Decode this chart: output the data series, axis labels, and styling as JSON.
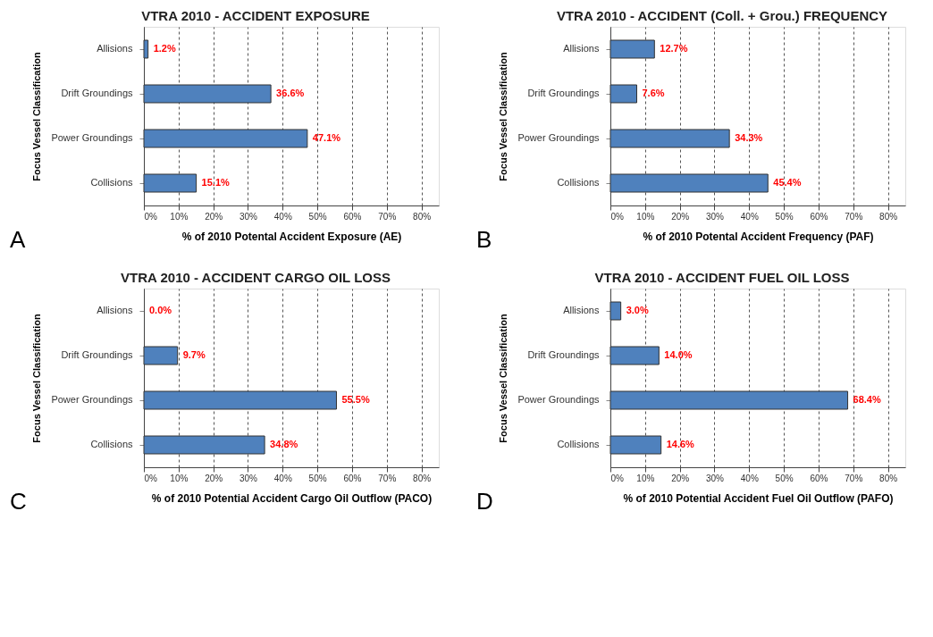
{
  "chart_data": [
    {
      "type": "bar",
      "orientation": "horizontal",
      "title": "VTRA 2010 - ACCIDENT EXPOSURE",
      "xlabel": "% of 2010 Potental Accident Exposure (AE)",
      "ylabel": "Focus Vessel Classification",
      "categories": [
        "Allisions",
        "Drift Groundings",
        "Power Groundings",
        "Collisions"
      ],
      "series": [
        {
          "color": "#4f81bd",
          "values": [
            1.2,
            36.6,
            47.1,
            15.1
          ],
          "value_labels": [
            "1.2%",
            "36.6%",
            "47.1%",
            "15.1%"
          ]
        }
      ],
      "xlim": [
        0,
        85
      ],
      "xticks": [
        {
          "value": 0,
          "label": "0%"
        },
        {
          "value": 10,
          "label": "10%"
        },
        {
          "value": 20,
          "label": "20%"
        },
        {
          "value": 30,
          "label": "30%"
        },
        {
          "value": 40,
          "label": "40%"
        },
        {
          "value": 50,
          "label": "50%"
        },
        {
          "value": 60,
          "label": "60%"
        },
        {
          "value": 70,
          "label": "70%"
        },
        {
          "value": 80,
          "label": "80%"
        }
      ],
      "grid": "x",
      "annotations": [
        "A"
      ]
    },
    {
      "type": "bar",
      "orientation": "horizontal",
      "title": "VTRA 2010 - ACCIDENT (Coll. + Grou.) FREQUENCY",
      "xlabel": "% of 2010 Potental Accident Frequency (PAF)",
      "ylabel": "Focus Vessel Classification",
      "categories": [
        "Allisions",
        "Drift Groundings",
        "Power Groundings",
        "Collisions"
      ],
      "series": [
        {
          "color": "#4f81bd",
          "values": [
            12.7,
            7.6,
            34.3,
            45.4
          ],
          "value_labels": [
            "12.7%",
            "7.6%",
            "34.3%",
            "45.4%"
          ]
        }
      ],
      "xlim": [
        0,
        85
      ],
      "xticks": [
        {
          "value": 0,
          "label": "0%"
        },
        {
          "value": 10,
          "label": "10%"
        },
        {
          "value": 20,
          "label": "20%"
        },
        {
          "value": 30,
          "label": "30%"
        },
        {
          "value": 40,
          "label": "40%"
        },
        {
          "value": 50,
          "label": "50%"
        },
        {
          "value": 60,
          "label": "60%"
        },
        {
          "value": 70,
          "label": "70%"
        },
        {
          "value": 80,
          "label": "80%"
        }
      ],
      "grid": "x",
      "annotations": [
        "B"
      ]
    },
    {
      "type": "bar",
      "orientation": "horizontal",
      "title": "VTRA 2010 - ACCIDENT CARGO OIL LOSS",
      "xlabel": "% of 2010 Potential Accident Cargo Oil Outflow (PACO)",
      "ylabel": "Focus Vessel Classification",
      "categories": [
        "Allisions",
        "Drift Groundings",
        "Power Groundings",
        "Collisions"
      ],
      "series": [
        {
          "color": "#4f81bd",
          "values": [
            0.0,
            9.7,
            55.5,
            34.8
          ],
          "value_labels": [
            "0.0%",
            "9.7%",
            "55.5%",
            "34.8%"
          ]
        }
      ],
      "xlim": [
        0,
        85
      ],
      "xticks": [
        {
          "value": 0,
          "label": "0%"
        },
        {
          "value": 10,
          "label": "10%"
        },
        {
          "value": 20,
          "label": "20%"
        },
        {
          "value": 30,
          "label": "30%"
        },
        {
          "value": 40,
          "label": "40%"
        },
        {
          "value": 50,
          "label": "50%"
        },
        {
          "value": 60,
          "label": "60%"
        },
        {
          "value": 70,
          "label": "70%"
        },
        {
          "value": 80,
          "label": "80%"
        }
      ],
      "grid": "x",
      "annotations": [
        "C"
      ]
    },
    {
      "type": "bar",
      "orientation": "horizontal",
      "title": "VTRA 2010 - ACCIDENT FUEL OIL LOSS",
      "xlabel": "% of 2010 Potential Accident Fuel Oil Outflow (PAFO)",
      "ylabel": "Focus Vessel Classification",
      "categories": [
        "Allisions",
        "Drift Groundings",
        "Power Groundings",
        "Collisions"
      ],
      "series": [
        {
          "color": "#4f81bd",
          "values": [
            3.0,
            14.0,
            68.4,
            14.6
          ],
          "value_labels": [
            "3.0%",
            "14.0%",
            "68.4%",
            "14.6%"
          ]
        }
      ],
      "xlim": [
        0,
        85
      ],
      "xticks": [
        {
          "value": 0,
          "label": "0%"
        },
        {
          "value": 10,
          "label": "10%"
        },
        {
          "value": 20,
          "label": "20%"
        },
        {
          "value": 30,
          "label": "30%"
        },
        {
          "value": 40,
          "label": "40%"
        },
        {
          "value": 50,
          "label": "50%"
        },
        {
          "value": 60,
          "label": "60%"
        },
        {
          "value": 70,
          "label": "70%"
        },
        {
          "value": 80,
          "label": "80%"
        }
      ],
      "grid": "x",
      "annotations": [
        "D"
      ]
    }
  ]
}
